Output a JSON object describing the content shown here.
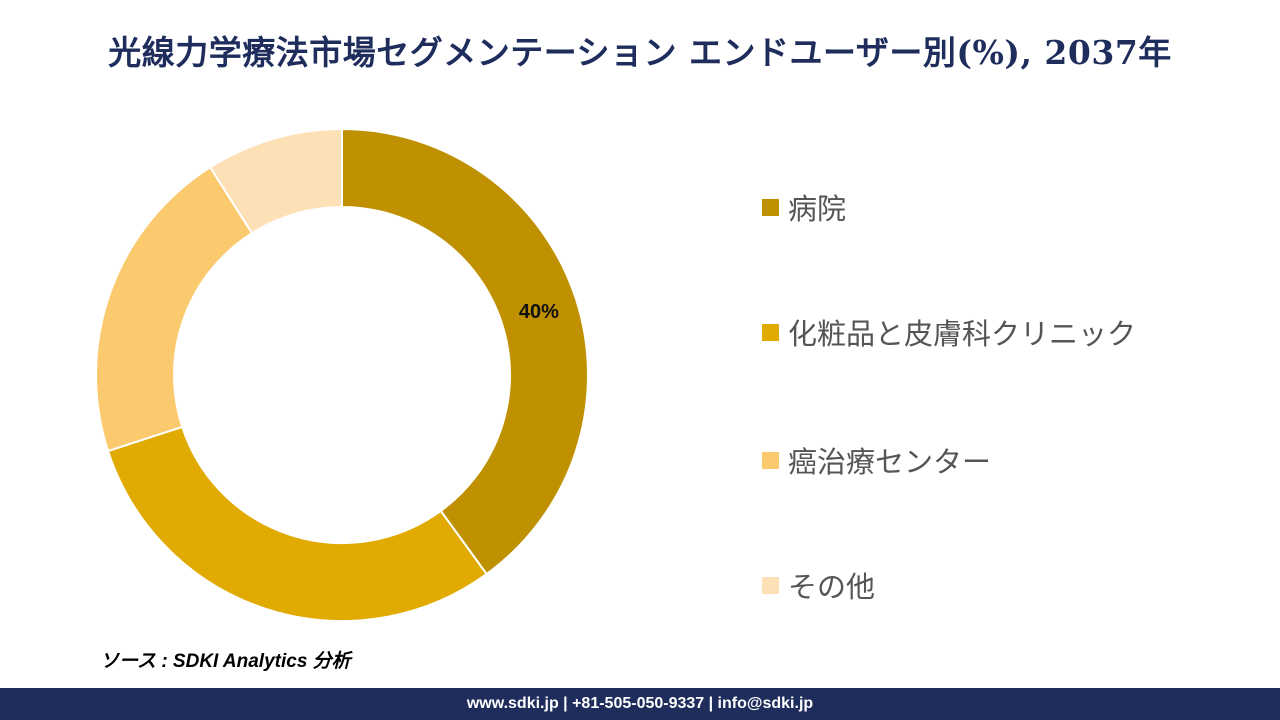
{
  "title": "光線力学療法市場セグメンテーション エンドユーザー別(%), 2037年",
  "chart_data": {
    "type": "pie",
    "variant": "donut",
    "legend_position": "right",
    "categories": [
      "病院",
      "化粧品と皮膚科クリニック",
      "癌治療センター",
      "その他"
    ],
    "values": [
      40,
      30,
      21,
      9
    ],
    "colors": [
      "#bf9000",
      "#e0aa00",
      "#fbc96e",
      "#fde0b5"
    ],
    "data_labels": [
      "40%",
      "",
      "",
      ""
    ]
  },
  "source": "ソース : SDKI Analytics 分析",
  "footer": "www.sdki.jp | +81-505-050-9337 | info@sdki.jp"
}
